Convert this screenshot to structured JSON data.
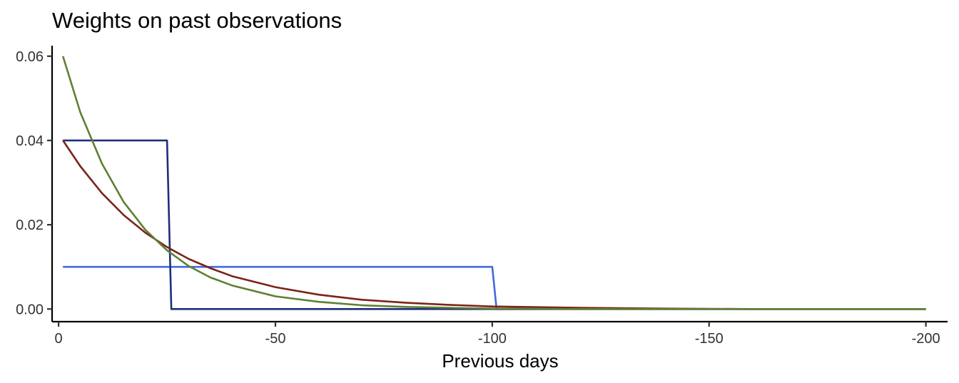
{
  "chart_data": {
    "type": "line",
    "title": "Weights on past observations",
    "xlabel": "Previous days",
    "ylabel": "",
    "xlim": [
      1.5,
      -205
    ],
    "ylim": [
      -0.003,
      0.0625
    ],
    "x_ticks": [
      0,
      -50,
      -100,
      -150,
      -200
    ],
    "x_tick_labels": [
      "0",
      "-50",
      "-100",
      "-150",
      "-200"
    ],
    "y_ticks": [
      0.0,
      0.02,
      0.04,
      0.06
    ],
    "y_tick_labels": [
      "0.00",
      "0.02",
      "0.04",
      "0.06"
    ],
    "grid": false,
    "legend": "none",
    "series": [
      {
        "color": "#4169E1",
        "points": [
          [
            -1,
            0.01
          ],
          [
            -100,
            0.01
          ],
          [
            -101,
            0.0
          ],
          [
            -200,
            0.0
          ]
        ]
      },
      {
        "color": "#1F2F78",
        "points": [
          [
            -1,
            0.04
          ],
          [
            -25,
            0.04
          ],
          [
            -26,
            0.0
          ],
          [
            -200,
            0.0
          ]
        ]
      },
      {
        "color": "#7A2418",
        "points": [
          [
            -1,
            0.04
          ],
          [
            -5,
            0.0339
          ],
          [
            -10,
            0.0275
          ],
          [
            -15,
            0.0223
          ],
          [
            -20,
            0.0181
          ],
          [
            -25,
            0.0147
          ],
          [
            -30,
            0.0119
          ],
          [
            -35,
            0.0097
          ],
          [
            -40,
            0.0078
          ],
          [
            -50,
            0.0052
          ],
          [
            -60,
            0.0034
          ],
          [
            -70,
            0.0022
          ],
          [
            -80,
            0.0015
          ],
          [
            -90,
            0.001
          ],
          [
            -100,
            0.0006
          ],
          [
            -120,
            0.0003
          ],
          [
            -140,
            0.0001
          ],
          [
            -160,
            0.0
          ],
          [
            -200,
            0.0
          ]
        ]
      },
      {
        "color": "#5F8032",
        "points": [
          [
            -1,
            0.06
          ],
          [
            -5,
            0.0467
          ],
          [
            -10,
            0.0345
          ],
          [
            -15,
            0.0254
          ],
          [
            -20,
            0.0188
          ],
          [
            -25,
            0.0139
          ],
          [
            -30,
            0.0102
          ],
          [
            -35,
            0.0075
          ],
          [
            -40,
            0.0056
          ],
          [
            -50,
            0.003
          ],
          [
            -60,
            0.0017
          ],
          [
            -70,
            0.0009
          ],
          [
            -80,
            0.0005
          ],
          [
            -100,
            0.0001
          ],
          [
            -120,
            0.0
          ],
          [
            -200,
            0.0
          ]
        ]
      }
    ]
  }
}
